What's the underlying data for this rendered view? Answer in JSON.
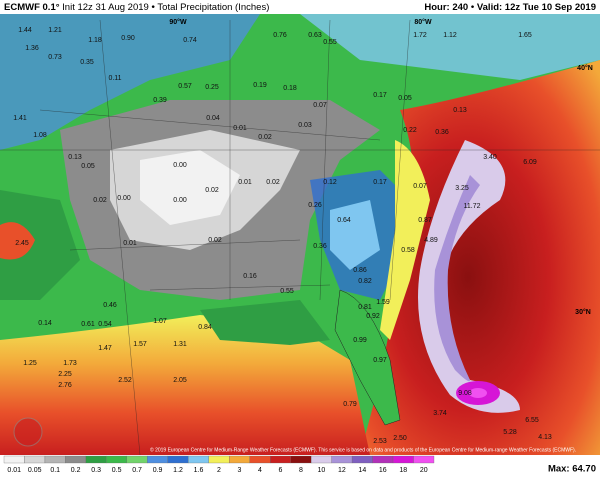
{
  "header": {
    "model": "ECMWF 0.1°",
    "init": "Init 12z 31 Aug 2019",
    "title": "Total Precipitation (Inches)",
    "hour": "Hour: 240",
    "valid": "Valid: 12z Tue 10 Sep 2019"
  },
  "grid_labels": [
    "90°W",
    "80°W",
    "40°N",
    "30°N"
  ],
  "map_labels": [
    "1.44",
    "1.21",
    "1.18",
    "0.90",
    "0.74",
    "0.76",
    "0.63",
    "0.55",
    "1.72",
    "1.12",
    "1.65",
    "1.36",
    "0.73",
    "0.35",
    "0.11",
    "0.57",
    "0.25",
    "0.19",
    "0.18",
    "0.07",
    "0.17",
    "0.05",
    "0.13",
    "1.41",
    "1.08",
    "0.39",
    "0.04",
    "0.01",
    "0.02",
    "0.03",
    "0.22",
    "0.36",
    "3.40",
    "6.09",
    "0.13",
    "0.05",
    "0.00",
    "0.01",
    "0.02",
    "0.12",
    "0.17",
    "0.07",
    "3.25",
    "0.02",
    "0.00",
    "0.00",
    "0.02",
    "0.26",
    "0.64",
    "0.87",
    "11.72",
    "2.45",
    "0.01",
    "0.02",
    "0.36",
    "0.58",
    "4.89",
    "0.16",
    "0.55",
    "0.86",
    "0.82",
    "0.46",
    "0.81",
    "1.59",
    "0.92",
    "0.14",
    "0.61",
    "0.54",
    "1.07",
    "0.84",
    "1.57",
    "1.31",
    "1.25",
    "1.73",
    "1.47",
    "2.25",
    "2.76",
    "2.52",
    "2.05",
    "0.97",
    "0.99",
    "9.08",
    "3.74",
    "6.55",
    "5.28",
    "4.13",
    "2.53",
    "2.50",
    "0.79"
  ],
  "copyright": "© 2019 European Centre for Medium-Range Weather Forecasts (ECMWF). This service is based on data and products of the European Centre for Medium-range Weather Forecasts (ECMWF).",
  "colorbar": {
    "labels": [
      "0.01",
      "0.05",
      "0.1",
      "0.2",
      "0.3",
      "0.5",
      "0.7",
      "0.9",
      "1.2",
      "1.6",
      "2",
      "3",
      "4",
      "6",
      "8",
      "10",
      "12",
      "14",
      "16",
      "18",
      "20"
    ],
    "colors": [
      "#f2f2f2",
      "#d6d6d6",
      "#b4b4b4",
      "#8c8c8c",
      "#2f9e44",
      "#3cb94b",
      "#72d36b",
      "#4f8fe0",
      "#2f6fd0",
      "#7fc6f0",
      "#f2ef5a",
      "#f3a93a",
      "#e8502a",
      "#c81f1f",
      "#8a1010",
      "#d9cbea",
      "#a892d8",
      "#7f5fc0",
      "#b230b8",
      "#d616d6",
      "#f050f0"
    ]
  },
  "footer": {
    "max": "Max: 64.70"
  }
}
